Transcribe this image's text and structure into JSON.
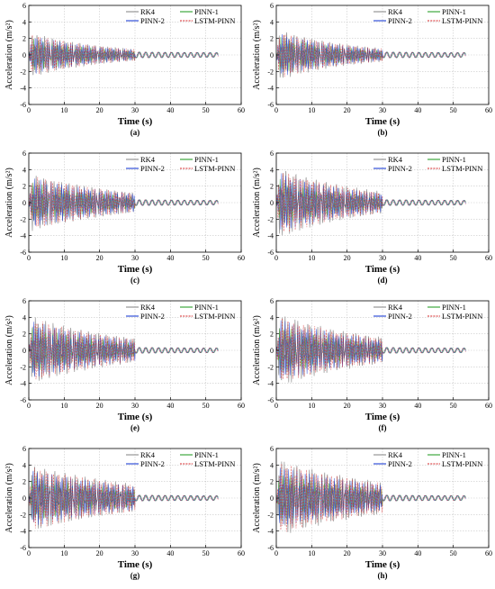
{
  "chart_data": [
    {
      "type": "line",
      "panel_label": "(a)",
      "xlabel": "Time (s)",
      "ylabel": "Acceleration (m/s²)",
      "xlim": [
        0,
        60
      ],
      "ylim": [
        -6,
        6
      ],
      "xticks": [
        0,
        10,
        20,
        30,
        40,
        50,
        60
      ],
      "yticks": [
        -6,
        -4,
        -2,
        0,
        2,
        4,
        6
      ],
      "grid": true,
      "legend_position": "top-right",
      "series": [
        {
          "name": "RK4",
          "color": "#8c8c8c",
          "style": "solid",
          "peak": 2.8,
          "decay": 0.045,
          "x": [
            0,
            53.5
          ]
        },
        {
          "name": "PINN-1",
          "color": "#2ca02c",
          "style": "solid",
          "peak": 2.2,
          "decay": 0.05,
          "x": [
            0,
            53.5
          ]
        },
        {
          "name": "PINN-2",
          "color": "#1f3fd6",
          "style": "solid",
          "peak": 2.5,
          "decay": 0.045,
          "x": [
            0,
            53.5
          ]
        },
        {
          "name": "LSTM-PINN",
          "color": "#d62728",
          "style": "dashed",
          "peak": 2.7,
          "decay": 0.045,
          "x": [
            0,
            53.5
          ]
        }
      ]
    },
    {
      "type": "line",
      "panel_label": "(b)",
      "xlabel": "Time (s)",
      "ylabel": "Acceleration (m/s²)",
      "xlim": [
        0,
        60
      ],
      "ylim": [
        -6,
        6
      ],
      "xticks": [
        0,
        10,
        20,
        30,
        40,
        50,
        60
      ],
      "yticks": [
        -6,
        -4,
        -2,
        0,
        2,
        4,
        6
      ],
      "grid": true,
      "legend_position": "top-right",
      "series": [
        {
          "name": "RK4",
          "color": "#8c8c8c",
          "style": "solid",
          "peak": 3.2,
          "decay": 0.045,
          "x": [
            0,
            53.5
          ]
        },
        {
          "name": "PINN-1",
          "color": "#2ca02c",
          "style": "solid",
          "peak": 2.4,
          "decay": 0.05,
          "x": [
            0,
            53.5
          ]
        },
        {
          "name": "PINN-2",
          "color": "#1f3fd6",
          "style": "solid",
          "peak": 2.8,
          "decay": 0.045,
          "x": [
            0,
            53.5
          ]
        },
        {
          "name": "LSTM-PINN",
          "color": "#d62728",
          "style": "dashed",
          "peak": 3.0,
          "decay": 0.045,
          "x": [
            0,
            53.5
          ]
        }
      ]
    },
    {
      "type": "line",
      "panel_label": "(c)",
      "xlabel": "Time (s)",
      "ylabel": "Acceleration (m/s²)",
      "xlim": [
        0,
        60
      ],
      "ylim": [
        -6,
        6
      ],
      "xticks": [
        0,
        10,
        20,
        30,
        40,
        50,
        60
      ],
      "yticks": [
        -6,
        -4,
        -2,
        0,
        2,
        4,
        6
      ],
      "grid": true,
      "legend_position": "top-right",
      "series": [
        {
          "name": "RK4",
          "color": "#8c8c8c",
          "style": "solid",
          "peak": 3.6,
          "decay": 0.035,
          "x": [
            0,
            53.5
          ]
        },
        {
          "name": "PINN-1",
          "color": "#2ca02c",
          "style": "solid",
          "peak": 2.6,
          "decay": 0.04,
          "x": [
            0,
            53.5
          ]
        },
        {
          "name": "PINN-2",
          "color": "#1f3fd6",
          "style": "solid",
          "peak": 3.2,
          "decay": 0.035,
          "x": [
            0,
            53.5
          ]
        },
        {
          "name": "LSTM-PINN",
          "color": "#d62728",
          "style": "dashed",
          "peak": 3.4,
          "decay": 0.035,
          "x": [
            0,
            53.5
          ]
        }
      ]
    },
    {
      "type": "line",
      "panel_label": "(d)",
      "xlabel": "Time (s)",
      "ylabel": "Acceleration (m/s²)",
      "xlim": [
        0,
        60
      ],
      "ylim": [
        -6,
        6
      ],
      "xticks": [
        0,
        10,
        20,
        30,
        40,
        50,
        60
      ],
      "yticks": [
        -6,
        -4,
        -2,
        0,
        2,
        4,
        6
      ],
      "grid": true,
      "legend_position": "top-right",
      "series": [
        {
          "name": "RK4",
          "color": "#8c8c8c",
          "style": "solid",
          "peak": 4.5,
          "decay": 0.04,
          "x": [
            0,
            53.5
          ]
        },
        {
          "name": "PINN-1",
          "color": "#2ca02c",
          "style": "solid",
          "peak": 3.0,
          "decay": 0.045,
          "x": [
            0,
            53.5
          ]
        },
        {
          "name": "PINN-2",
          "color": "#1f3fd6",
          "style": "solid",
          "peak": 3.8,
          "decay": 0.04,
          "x": [
            0,
            53.5
          ]
        },
        {
          "name": "LSTM-PINN",
          "color": "#d62728",
          "style": "dashed",
          "peak": 4.2,
          "decay": 0.04,
          "x": [
            0,
            53.5
          ]
        }
      ]
    },
    {
      "type": "line",
      "panel_label": "(e)",
      "xlabel": "Time (s)",
      "ylabel": "Acceleration (m/s²)",
      "xlim": [
        0,
        60
      ],
      "ylim": [
        -6,
        6
      ],
      "xticks": [
        0,
        10,
        20,
        30,
        40,
        50,
        60
      ],
      "yticks": [
        -6,
        -4,
        -2,
        0,
        2,
        4,
        6
      ],
      "grid": true,
      "legend_position": "top-right",
      "series": [
        {
          "name": "RK4",
          "color": "#8c8c8c",
          "style": "solid",
          "peak": 4.3,
          "decay": 0.035,
          "x": [
            0,
            53.5
          ]
        },
        {
          "name": "PINN-1",
          "color": "#2ca02c",
          "style": "solid",
          "peak": 3.0,
          "decay": 0.04,
          "x": [
            0,
            53.5
          ]
        },
        {
          "name": "PINN-2",
          "color": "#1f3fd6",
          "style": "solid",
          "peak": 3.7,
          "decay": 0.035,
          "x": [
            0,
            53.5
          ]
        },
        {
          "name": "LSTM-PINN",
          "color": "#d62728",
          "style": "dashed",
          "peak": 4.0,
          "decay": 0.035,
          "x": [
            0,
            53.5
          ]
        }
      ]
    },
    {
      "type": "line",
      "panel_label": "(f)",
      "xlabel": "Time (s)",
      "ylabel": "Acceleration (m/s²)",
      "xlim": [
        0,
        60
      ],
      "ylim": [
        -6,
        6
      ],
      "xticks": [
        0,
        10,
        20,
        30,
        40,
        50,
        60
      ],
      "yticks": [
        -6,
        -4,
        -2,
        0,
        2,
        4,
        6
      ],
      "grid": true,
      "legend_position": "top-right",
      "series": [
        {
          "name": "RK4",
          "color": "#8c8c8c",
          "style": "solid",
          "peak": 4.6,
          "decay": 0.035,
          "x": [
            0,
            53.5
          ]
        },
        {
          "name": "PINN-1",
          "color": "#2ca02c",
          "style": "solid",
          "peak": 3.1,
          "decay": 0.04,
          "x": [
            0,
            53.5
          ]
        },
        {
          "name": "PINN-2",
          "color": "#1f3fd6",
          "style": "solid",
          "peak": 3.9,
          "decay": 0.035,
          "x": [
            0,
            53.5
          ]
        },
        {
          "name": "LSTM-PINN",
          "color": "#d62728",
          "style": "dashed",
          "peak": 4.3,
          "decay": 0.035,
          "x": [
            0,
            53.5
          ]
        }
      ]
    },
    {
      "type": "line",
      "panel_label": "(g)",
      "xlabel": "Time (s)",
      "ylabel": "Acceleration (m/s²)",
      "xlim": [
        0,
        60
      ],
      "ylim": [
        -6,
        6
      ],
      "xticks": [
        0,
        10,
        20,
        30,
        40,
        50,
        60
      ],
      "yticks": [
        -6,
        -4,
        -2,
        0,
        2,
        4,
        6
      ],
      "grid": true,
      "legend_position": "top-right",
      "series": [
        {
          "name": "RK4",
          "color": "#8c8c8c",
          "style": "solid",
          "peak": 4.2,
          "decay": 0.03,
          "x": [
            0,
            53.5
          ]
        },
        {
          "name": "PINN-1",
          "color": "#2ca02c",
          "style": "solid",
          "peak": 3.0,
          "decay": 0.035,
          "x": [
            0,
            53.5
          ]
        },
        {
          "name": "PINN-2",
          "color": "#1f3fd6",
          "style": "solid",
          "peak": 3.6,
          "decay": 0.03,
          "x": [
            0,
            53.5
          ]
        },
        {
          "name": "LSTM-PINN",
          "color": "#d62728",
          "style": "dashed",
          "peak": 4.0,
          "decay": 0.03,
          "x": [
            0,
            53.5
          ]
        }
      ]
    },
    {
      "type": "line",
      "panel_label": "(h)",
      "xlabel": "Time (s)",
      "ylabel": "Acceleration (m/s²)",
      "xlim": [
        0,
        60
      ],
      "ylim": [
        -6,
        6
      ],
      "xticks": [
        0,
        10,
        20,
        30,
        40,
        50,
        60
      ],
      "yticks": [
        -6,
        -4,
        -2,
        0,
        2,
        4,
        6
      ],
      "grid": true,
      "legend_position": "top-right",
      "series": [
        {
          "name": "RK4",
          "color": "#8c8c8c",
          "style": "solid",
          "peak": 4.8,
          "decay": 0.03,
          "x": [
            0,
            53.5
          ]
        },
        {
          "name": "PINN-1",
          "color": "#2ca02c",
          "style": "solid",
          "peak": 3.2,
          "decay": 0.035,
          "x": [
            0,
            53.5
          ]
        },
        {
          "name": "PINN-2",
          "color": "#1f3fd6",
          "style": "solid",
          "peak": 4.0,
          "decay": 0.03,
          "x": [
            0,
            53.5
          ]
        },
        {
          "name": "LSTM-PINN",
          "color": "#d62728",
          "style": "dashed",
          "peak": 4.5,
          "decay": 0.03,
          "x": [
            0,
            53.5
          ]
        }
      ]
    }
  ]
}
